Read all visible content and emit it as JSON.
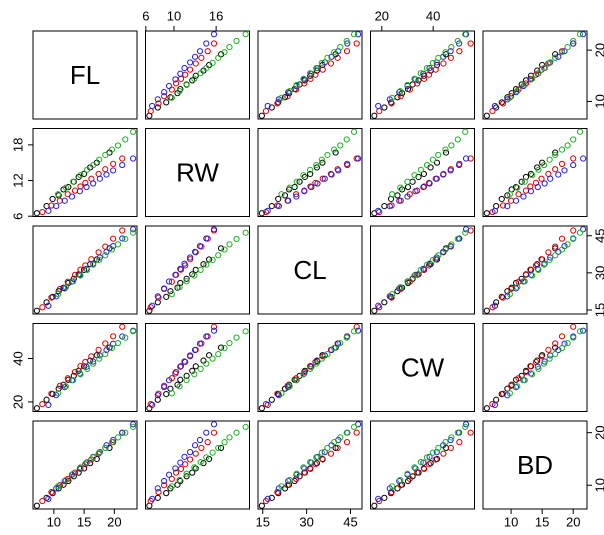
{
  "chart_data": {
    "type": "scatter-matrix",
    "variables": [
      {
        "name": "FL",
        "lim": [
          6.56,
          23.74
        ],
        "xticks": [
          10,
          15,
          20
        ],
        "yticks": [
          10,
          20
        ]
      },
      {
        "name": "RW",
        "lim": [
          5.95,
          20.75
        ],
        "xticks": [
          6,
          10,
          16
        ],
        "yticks": [
          6,
          12,
          18
        ]
      },
      {
        "name": "CL",
        "lim": [
          13.38,
          48.92
        ],
        "xticks": [
          15,
          30,
          45
        ],
        "yticks": [
          15,
          30,
          45
        ]
      },
      {
        "name": "CW",
        "lim": [
          15.6,
          56.1
        ],
        "xticks": [
          20,
          40
        ],
        "yticks": [
          20,
          40
        ]
      },
      {
        "name": "BD",
        "lim": [
          5.48,
          22.22
        ],
        "xticks": [
          10,
          15,
          20
        ],
        "yticks": [
          10,
          20
        ]
      }
    ],
    "series": [
      {
        "color": "#000000",
        "values": [
          [
            7.2,
            6.5,
            14.7,
            17.1,
            6.1
          ],
          [
            8.8,
            7.7,
            18.1,
            21.0,
            7.6
          ],
          [
            9.8,
            8.9,
            20.3,
            23.6,
            8.5
          ],
          [
            10.8,
            9.5,
            22.6,
            26.1,
            9.4
          ],
          [
            11.6,
            10.5,
            24.0,
            27.9,
            10.1
          ],
          [
            12.4,
            10.9,
            25.9,
            30.2,
            10.8
          ],
          [
            13.3,
            11.8,
            27.6,
            32.0,
            11.7
          ],
          [
            14.1,
            12.6,
            29.4,
            34.3,
            12.4
          ],
          [
            15.0,
            13.1,
            31.2,
            36.4,
            13.2
          ],
          [
            16.0,
            14.2,
            33.5,
            39.0,
            14.2
          ],
          [
            17.1,
            15.0,
            35.4,
            41.5,
            15.0
          ],
          [
            19.2,
            16.7,
            39.9,
            45.0,
            17.1
          ]
        ]
      },
      {
        "color": "#df0000",
        "values": [
          [
            8.1,
            6.7,
            16.1,
            19.0,
            7.0
          ],
          [
            9.6,
            7.8,
            20.0,
            23.8,
            8.7
          ],
          [
            11.0,
            8.6,
            23.5,
            27.4,
            10.0
          ],
          [
            12.3,
            9.7,
            26.4,
            30.9,
            11.2
          ],
          [
            13.5,
            10.3,
            29.2,
            33.8,
            12.4
          ],
          [
            14.4,
            11.0,
            31.3,
            36.5,
            13.1
          ],
          [
            15.2,
            11.6,
            33.0,
            38.4,
            14.0
          ],
          [
            16.2,
            12.3,
            35.5,
            41.0,
            14.9
          ],
          [
            17.4,
            13.1,
            38.3,
            44.0,
            16.0
          ],
          [
            18.5,
            13.9,
            40.6,
            46.9,
            17.1
          ],
          [
            19.8,
            14.8,
            43.8,
            50.2,
            18.2
          ],
          [
            21.3,
            15.7,
            47.1,
            54.6,
            20.0
          ]
        ]
      },
      {
        "color": "#2020e0",
        "values": [
          [
            9.1,
            6.9,
            16.7,
            18.6,
            7.4
          ],
          [
            10.4,
            7.7,
            20.5,
            23.1,
            9.4
          ],
          [
            11.8,
            8.6,
            23.7,
            26.8,
            10.8
          ],
          [
            13.0,
            9.3,
            26.5,
            30.0,
            12.0
          ],
          [
            14.3,
            10.2,
            29.2,
            33.1,
            13.2
          ],
          [
            15.4,
            10.9,
            31.6,
            36.2,
            14.3
          ],
          [
            16.5,
            11.5,
            33.7,
            38.6,
            15.4
          ],
          [
            17.6,
            12.3,
            36.2,
            41.4,
            16.3
          ],
          [
            18.7,
            13.0,
            38.5,
            43.9,
            17.6
          ],
          [
            19.8,
            13.7,
            40.8,
            46.8,
            18.6
          ],
          [
            21.3,
            14.6,
            43.9,
            50.1,
            20.0
          ],
          [
            23.1,
            15.7,
            47.6,
            52.8,
            21.6
          ]
        ]
      },
      {
        "color": "#20b020",
        "values": [
          [
            10.7,
            9.7,
            21.4,
            24.0,
            9.8
          ],
          [
            12.0,
            10.8,
            24.2,
            27.2,
            11.0
          ],
          [
            13.2,
            11.8,
            26.6,
            30.0,
            12.2
          ],
          [
            14.4,
            12.9,
            28.9,
            32.7,
            13.4
          ],
          [
            15.5,
            13.8,
            31.2,
            35.2,
            14.4
          ],
          [
            16.5,
            14.6,
            33.3,
            37.6,
            15.3
          ],
          [
            17.5,
            15.5,
            35.2,
            39.9,
            16.2
          ],
          [
            18.5,
            16.3,
            37.1,
            42.0,
            17.1
          ],
          [
            19.6,
            17.2,
            39.4,
            44.8,
            18.2
          ],
          [
            20.6,
            17.9,
            41.5,
            47.1,
            19.1
          ],
          [
            21.8,
            18.9,
            43.7,
            49.6,
            20.0
          ],
          [
            23.1,
            20.2,
            46.2,
            52.5,
            21.1
          ]
        ]
      }
    ]
  }
}
